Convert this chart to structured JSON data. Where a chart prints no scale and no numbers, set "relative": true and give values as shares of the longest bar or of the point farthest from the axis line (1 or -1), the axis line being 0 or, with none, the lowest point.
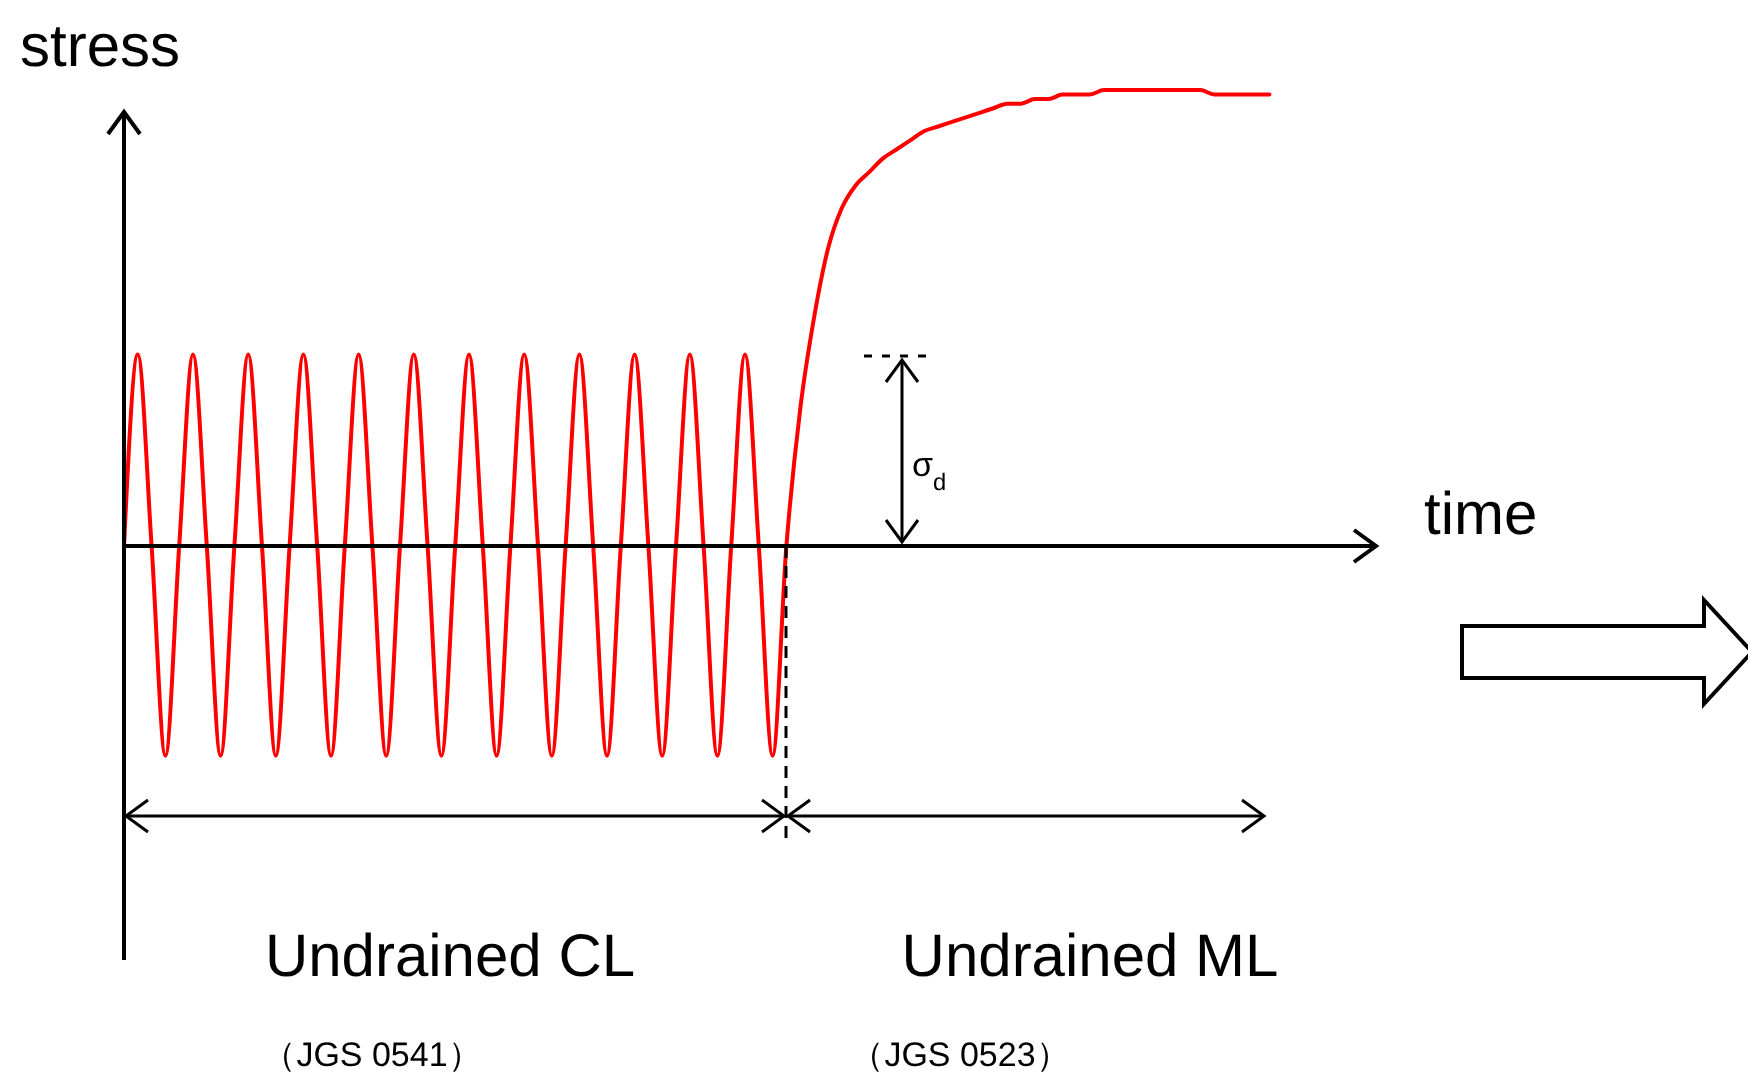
{
  "chart_data": {
    "type": "line",
    "relative": true,
    "xlabel": "time",
    "ylabel": "stress",
    "line_style": "solid",
    "categories": [
      null,
      null,
      null,
      null,
      null,
      null,
      null,
      null,
      null,
      null,
      null,
      null,
      null,
      null,
      null,
      null,
      null,
      null,
      null,
      null,
      null,
      null,
      null,
      null,
      null,
      null,
      null,
      null,
      null,
      null,
      null,
      null,
      null,
      null,
      null,
      null,
      null,
      null,
      null,
      null,
      null,
      null,
      null,
      null,
      null,
      null,
      null,
      null,
      null,
      null,
      null,
      null,
      null,
      null,
      null,
      null,
      null,
      null,
      null,
      null,
      null,
      null,
      null,
      null,
      null,
      null,
      null,
      null,
      null,
      null,
      null,
      null,
      null,
      null,
      null,
      null,
      null,
      null,
      null,
      null,
      null,
      null,
      null,
      null
    ],
    "series": [
      {
        "color": "#ff0000",
        "values": [
          0,
          0.42,
          0,
          -0.46,
          0,
          0.42,
          0,
          -0.46,
          0,
          0.42,
          0,
          -0.46,
          0,
          0.42,
          0,
          -0.46,
          0,
          0.42,
          0,
          -0.46,
          0,
          0.42,
          0,
          -0.46,
          0,
          0.42,
          0,
          -0.46,
          0,
          0.42,
          0,
          -0.46,
          0,
          0.42,
          0,
          -0.46,
          0,
          0.42,
          0,
          -0.46,
          0,
          0.42,
          0,
          -0.46,
          0,
          0.42,
          0,
          -0.46,
          0,
          0.3,
          0.5,
          0.65,
          0.74,
          0.79,
          0.82,
          0.85,
          0.87,
          0.89,
          0.91,
          0.92,
          0.93,
          0.94,
          0.95,
          0.96,
          0.97,
          0.97,
          0.98,
          0.98,
          0.99,
          0.99,
          0.99,
          1,
          1,
          1,
          1,
          1,
          1,
          1,
          1,
          0.99,
          0.99,
          0.99,
          0.99,
          0.99
        ]
      }
    ],
    "annotations": [
      "σ$_{d}$",
      "Undrained CL",
      "（JGS 0541）",
      "Undrained ML",
      "（JGS 0523）"
    ]
  }
}
